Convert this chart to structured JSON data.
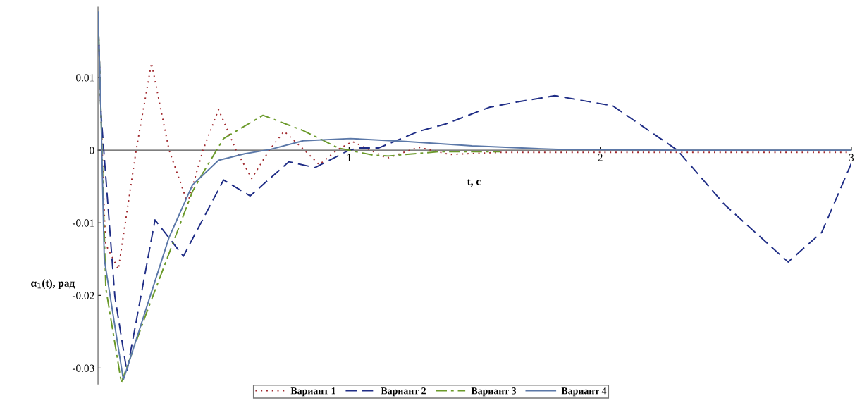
{
  "chart_data": {
    "type": "line",
    "xlabel": "t, c",
    "ylabel": "α$_{1}$(t), рад",
    "xlim": [
      0,
      3
    ],
    "ylim": [
      -0.0322,
      0.0197
    ],
    "xticks": [
      1,
      2,
      3
    ],
    "yticks": [
      {
        "value": -0.03,
        "label": "-0.03"
      },
      {
        "value": -0.02,
        "label": "-0.02"
      },
      {
        "value": -0.01,
        "label": "-0.01"
      },
      0,
      0.01
    ],
    "grid": false,
    "legend": "bottom",
    "marker": "none",
    "series": [
      {
        "name": "Вариант 1",
        "color": "#a0282d",
        "line_style": "dotted",
        "x": [
          0,
          0.012,
          0.025,
          0.031,
          0.081,
          0.152,
          0.213,
          0.283,
          0.357,
          0.418,
          0.48,
          0.55,
          0.612,
          0.682,
          0.741,
          0.822,
          0.881,
          0.951,
          1.013,
          1.151,
          1.277,
          1.4,
          1.6,
          2.0,
          2.5,
          3.0
        ],
        "values": [
          0.019,
          0.005,
          -0.0087,
          -0.013,
          -0.0164,
          0,
          0.012,
          0,
          -0.0073,
          0,
          0.0056,
          0,
          -0.0039,
          0,
          0.0026,
          0,
          -0.002,
          0,
          0.0012,
          -0.0011,
          0.0004,
          -0.0006,
          -0.0003,
          -0.0003,
          -0.0003,
          -0.0003
        ]
      },
      {
        "name": "Вариант 2",
        "color": "#1f2d86",
        "line_style": "dashed",
        "x": [
          0,
          0.012,
          0.067,
          0.115,
          0.227,
          0.34,
          0.5,
          0.606,
          0.76,
          0.864,
          1.0,
          1.04,
          1.117,
          1.277,
          1.384,
          1.558,
          1.664,
          1.819,
          2.05,
          2.307,
          2.495,
          2.748,
          2.882,
          3.0
        ],
        "values": [
          0.019,
          0.005,
          -0.0201,
          -0.0305,
          -0.0096,
          -0.0146,
          -0.0041,
          -0.0063,
          -0.0016,
          -0.0024,
          0,
          0.0003,
          0.0003,
          0.0026,
          0.0036,
          0.0059,
          0.0066,
          0.0075,
          0.0061,
          0,
          -0.0075,
          -0.0154,
          -0.0113,
          -0.0018
        ]
      },
      {
        "name": "Вариант 3",
        "color": "#6b9a2a",
        "line_style": "dashdot",
        "x": [
          0,
          0.012,
          0.031,
          0.093,
          0.19,
          0.376,
          0.415,
          0.5,
          0.657,
          0.817,
          0.957,
          1.097,
          1.156,
          1.36,
          1.6
        ],
        "values": [
          0.019,
          0.005,
          -0.019,
          -0.032,
          -0.0227,
          -0.0057,
          -0.0033,
          0.0016,
          0.0048,
          0.0027,
          0.0003,
          -0.0007,
          -0.0008,
          -0.0002,
          -0.0002
        ]
      },
      {
        "name": "Вариант 4",
        "color": "#5b78a8",
        "line_style": "solid",
        "x": [
          0,
          0.012,
          0.025,
          0.101,
          0.283,
          0.376,
          0.48,
          0.584,
          0.685,
          0.817,
          1.005,
          1.224,
          1.49,
          1.83,
          2.3,
          3.0
        ],
        "values": [
          0.019,
          0.005,
          -0.015,
          -0.0316,
          -0.012,
          -0.0048,
          -0.0014,
          -0.0005,
          0.0001,
          0.0013,
          0.0016,
          0.0012,
          0.0006,
          0.0001,
          0,
          0
        ]
      }
    ]
  }
}
